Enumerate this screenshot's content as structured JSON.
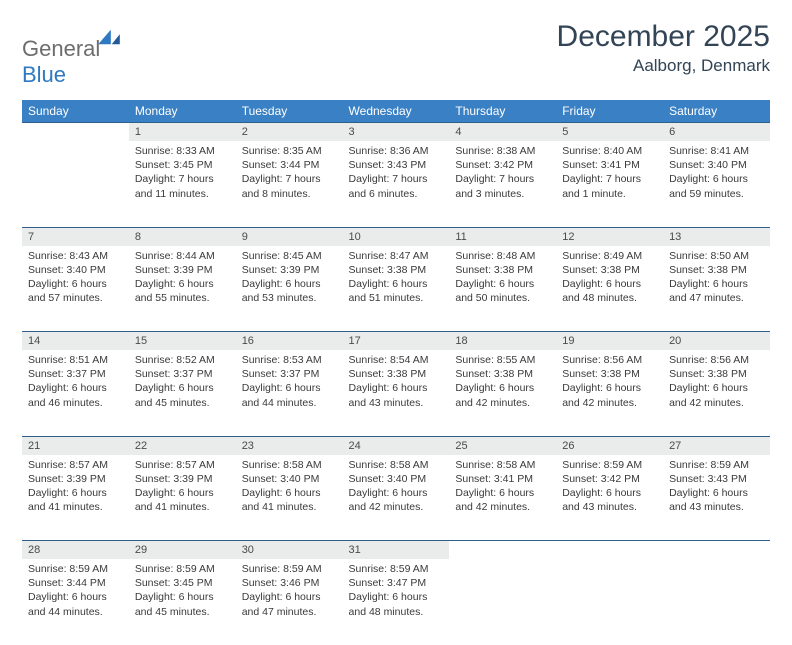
{
  "logo": {
    "general": "General",
    "blue": "Blue"
  },
  "title": "December 2025",
  "location": "Aalborg, Denmark",
  "colors": {
    "header_bg": "#3a80c4",
    "header_text": "#ffffff",
    "daynum_bg": "#e9eceb",
    "row_border": "#2f5e8a",
    "body_text": "#3a3a3a",
    "title_text": "#324455",
    "logo_gray": "#6d6d6d",
    "logo_blue": "#2f79c2"
  },
  "day_headers": [
    "Sunday",
    "Monday",
    "Tuesday",
    "Wednesday",
    "Thursday",
    "Friday",
    "Saturday"
  ],
  "weeks": [
    {
      "nums": [
        "",
        "1",
        "2",
        "3",
        "4",
        "5",
        "6"
      ],
      "cells": [
        null,
        {
          "sunrise": "Sunrise: 8:33 AM",
          "sunset": "Sunset: 3:45 PM",
          "day1": "Daylight: 7 hours",
          "day2": "and 11 minutes."
        },
        {
          "sunrise": "Sunrise: 8:35 AM",
          "sunset": "Sunset: 3:44 PM",
          "day1": "Daylight: 7 hours",
          "day2": "and 8 minutes."
        },
        {
          "sunrise": "Sunrise: 8:36 AM",
          "sunset": "Sunset: 3:43 PM",
          "day1": "Daylight: 7 hours",
          "day2": "and 6 minutes."
        },
        {
          "sunrise": "Sunrise: 8:38 AM",
          "sunset": "Sunset: 3:42 PM",
          "day1": "Daylight: 7 hours",
          "day2": "and 3 minutes."
        },
        {
          "sunrise": "Sunrise: 8:40 AM",
          "sunset": "Sunset: 3:41 PM",
          "day1": "Daylight: 7 hours",
          "day2": "and 1 minute."
        },
        {
          "sunrise": "Sunrise: 8:41 AM",
          "sunset": "Sunset: 3:40 PM",
          "day1": "Daylight: 6 hours",
          "day2": "and 59 minutes."
        }
      ]
    },
    {
      "nums": [
        "7",
        "8",
        "9",
        "10",
        "11",
        "12",
        "13"
      ],
      "cells": [
        {
          "sunrise": "Sunrise: 8:43 AM",
          "sunset": "Sunset: 3:40 PM",
          "day1": "Daylight: 6 hours",
          "day2": "and 57 minutes."
        },
        {
          "sunrise": "Sunrise: 8:44 AM",
          "sunset": "Sunset: 3:39 PM",
          "day1": "Daylight: 6 hours",
          "day2": "and 55 minutes."
        },
        {
          "sunrise": "Sunrise: 8:45 AM",
          "sunset": "Sunset: 3:39 PM",
          "day1": "Daylight: 6 hours",
          "day2": "and 53 minutes."
        },
        {
          "sunrise": "Sunrise: 8:47 AM",
          "sunset": "Sunset: 3:38 PM",
          "day1": "Daylight: 6 hours",
          "day2": "and 51 minutes."
        },
        {
          "sunrise": "Sunrise: 8:48 AM",
          "sunset": "Sunset: 3:38 PM",
          "day1": "Daylight: 6 hours",
          "day2": "and 50 minutes."
        },
        {
          "sunrise": "Sunrise: 8:49 AM",
          "sunset": "Sunset: 3:38 PM",
          "day1": "Daylight: 6 hours",
          "day2": "and 48 minutes."
        },
        {
          "sunrise": "Sunrise: 8:50 AM",
          "sunset": "Sunset: 3:38 PM",
          "day1": "Daylight: 6 hours",
          "day2": "and 47 minutes."
        }
      ]
    },
    {
      "nums": [
        "14",
        "15",
        "16",
        "17",
        "18",
        "19",
        "20"
      ],
      "cells": [
        {
          "sunrise": "Sunrise: 8:51 AM",
          "sunset": "Sunset: 3:37 PM",
          "day1": "Daylight: 6 hours",
          "day2": "and 46 minutes."
        },
        {
          "sunrise": "Sunrise: 8:52 AM",
          "sunset": "Sunset: 3:37 PM",
          "day1": "Daylight: 6 hours",
          "day2": "and 45 minutes."
        },
        {
          "sunrise": "Sunrise: 8:53 AM",
          "sunset": "Sunset: 3:37 PM",
          "day1": "Daylight: 6 hours",
          "day2": "and 44 minutes."
        },
        {
          "sunrise": "Sunrise: 8:54 AM",
          "sunset": "Sunset: 3:38 PM",
          "day1": "Daylight: 6 hours",
          "day2": "and 43 minutes."
        },
        {
          "sunrise": "Sunrise: 8:55 AM",
          "sunset": "Sunset: 3:38 PM",
          "day1": "Daylight: 6 hours",
          "day2": "and 42 minutes."
        },
        {
          "sunrise": "Sunrise: 8:56 AM",
          "sunset": "Sunset: 3:38 PM",
          "day1": "Daylight: 6 hours",
          "day2": "and 42 minutes."
        },
        {
          "sunrise": "Sunrise: 8:56 AM",
          "sunset": "Sunset: 3:38 PM",
          "day1": "Daylight: 6 hours",
          "day2": "and 42 minutes."
        }
      ]
    },
    {
      "nums": [
        "21",
        "22",
        "23",
        "24",
        "25",
        "26",
        "27"
      ],
      "cells": [
        {
          "sunrise": "Sunrise: 8:57 AM",
          "sunset": "Sunset: 3:39 PM",
          "day1": "Daylight: 6 hours",
          "day2": "and 41 minutes."
        },
        {
          "sunrise": "Sunrise: 8:57 AM",
          "sunset": "Sunset: 3:39 PM",
          "day1": "Daylight: 6 hours",
          "day2": "and 41 minutes."
        },
        {
          "sunrise": "Sunrise: 8:58 AM",
          "sunset": "Sunset: 3:40 PM",
          "day1": "Daylight: 6 hours",
          "day2": "and 41 minutes."
        },
        {
          "sunrise": "Sunrise: 8:58 AM",
          "sunset": "Sunset: 3:40 PM",
          "day1": "Daylight: 6 hours",
          "day2": "and 42 minutes."
        },
        {
          "sunrise": "Sunrise: 8:58 AM",
          "sunset": "Sunset: 3:41 PM",
          "day1": "Daylight: 6 hours",
          "day2": "and 42 minutes."
        },
        {
          "sunrise": "Sunrise: 8:59 AM",
          "sunset": "Sunset: 3:42 PM",
          "day1": "Daylight: 6 hours",
          "day2": "and 43 minutes."
        },
        {
          "sunrise": "Sunrise: 8:59 AM",
          "sunset": "Sunset: 3:43 PM",
          "day1": "Daylight: 6 hours",
          "day2": "and 43 minutes."
        }
      ]
    },
    {
      "nums": [
        "28",
        "29",
        "30",
        "31",
        "",
        "",
        ""
      ],
      "cells": [
        {
          "sunrise": "Sunrise: 8:59 AM",
          "sunset": "Sunset: 3:44 PM",
          "day1": "Daylight: 6 hours",
          "day2": "and 44 minutes."
        },
        {
          "sunrise": "Sunrise: 8:59 AM",
          "sunset": "Sunset: 3:45 PM",
          "day1": "Daylight: 6 hours",
          "day2": "and 45 minutes."
        },
        {
          "sunrise": "Sunrise: 8:59 AM",
          "sunset": "Sunset: 3:46 PM",
          "day1": "Daylight: 6 hours",
          "day2": "and 47 minutes."
        },
        {
          "sunrise": "Sunrise: 8:59 AM",
          "sunset": "Sunset: 3:47 PM",
          "day1": "Daylight: 6 hours",
          "day2": "and 48 minutes."
        },
        null,
        null,
        null
      ]
    }
  ]
}
